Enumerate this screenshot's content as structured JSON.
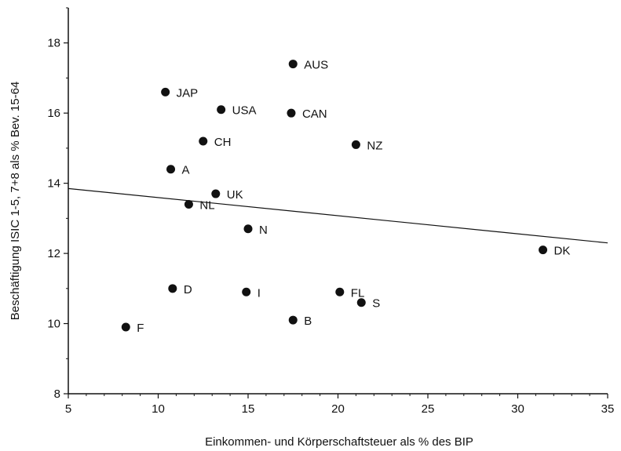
{
  "chart_data": {
    "type": "scatter",
    "title": "",
    "xlabel": "Einkommen- und Körperschaftsteuer als % des BIP",
    "ylabel": "Beschäftigung ISIC 1-5, 7+8 als % Bev. 15-64",
    "xlim": [
      5,
      35
    ],
    "ylim": [
      8,
      19
    ],
    "xticks": [
      "5",
      "10",
      "15",
      "20",
      "25",
      "30",
      "35"
    ],
    "yticks": [
      "8",
      "10",
      "12",
      "14",
      "16",
      "18"
    ],
    "grid": false,
    "marker_color": "#111111",
    "points": [
      {
        "label": "AUS",
        "x": 17.5,
        "y": 17.4
      },
      {
        "label": "JAP",
        "x": 10.4,
        "y": 16.6
      },
      {
        "label": "USA",
        "x": 13.5,
        "y": 16.1
      },
      {
        "label": "CAN",
        "x": 17.4,
        "y": 16.0
      },
      {
        "label": "CH",
        "x": 12.5,
        "y": 15.2
      },
      {
        "label": "NZ",
        "x": 21.0,
        "y": 15.1
      },
      {
        "label": "A",
        "x": 10.7,
        "y": 14.4
      },
      {
        "label": "UK",
        "x": 13.2,
        "y": 13.7
      },
      {
        "label": "NL",
        "x": 11.7,
        "y": 13.4
      },
      {
        "label": "N",
        "x": 15.0,
        "y": 12.7
      },
      {
        "label": "DK",
        "x": 31.4,
        "y": 12.1
      },
      {
        "label": "D",
        "x": 10.8,
        "y": 11.0
      },
      {
        "label": "I",
        "x": 14.9,
        "y": 10.9
      },
      {
        "label": "FL",
        "x": 20.1,
        "y": 10.9
      },
      {
        "label": "S",
        "x": 21.3,
        "y": 10.6
      },
      {
        "label": "B",
        "x": 17.5,
        "y": 10.1
      },
      {
        "label": "F",
        "x": 8.2,
        "y": 9.9
      }
    ],
    "trendline": {
      "x": [
        5,
        35
      ],
      "y": [
        13.85,
        12.3
      ]
    }
  }
}
